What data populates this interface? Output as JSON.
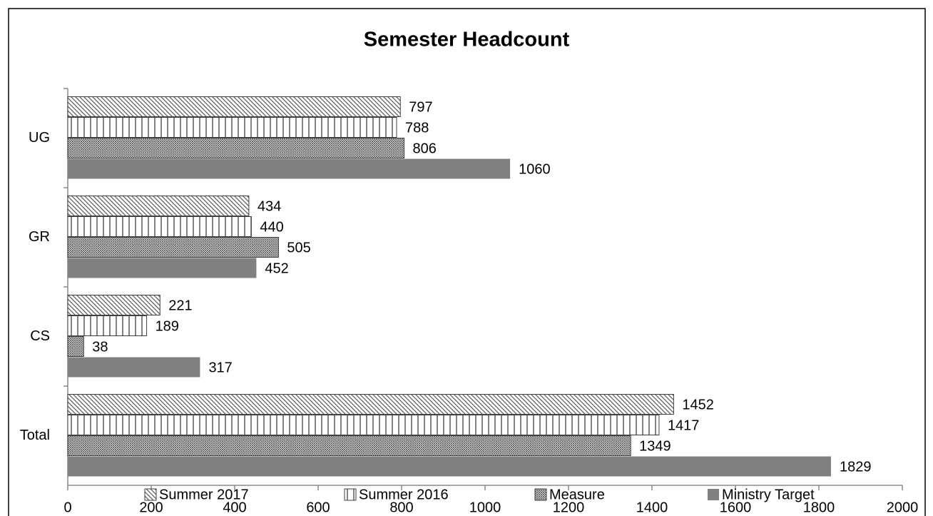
{
  "chart_data": {
    "type": "bar",
    "orientation": "horizontal",
    "title": "Semester Headcount",
    "categories": [
      "UG",
      "GR",
      "CS",
      "Total"
    ],
    "series": [
      {
        "name": "Summer 2017",
        "color": "#595959",
        "pattern": "diagonal",
        "values": [
          797,
          434,
          221,
          1452
        ]
      },
      {
        "name": "Summer 2016",
        "color": "#595959",
        "pattern": "vertical",
        "values": [
          788,
          440,
          189,
          1417
        ]
      },
      {
        "name": "Measure",
        "color": "#595959",
        "pattern": "crosshatch",
        "values": [
          806,
          505,
          38,
          1349
        ]
      },
      {
        "name": "Ministry Target",
        "color": "#808080",
        "pattern": "solid",
        "values": [
          1060,
          452,
          317,
          1829
        ]
      }
    ],
    "xlim": [
      0,
      2000
    ],
    "xticks": [
      0,
      200,
      400,
      600,
      800,
      1000,
      1200,
      1400,
      1600,
      1800,
      2000
    ],
    "grid": false,
    "legend": "bottom",
    "data_labels": true
  }
}
